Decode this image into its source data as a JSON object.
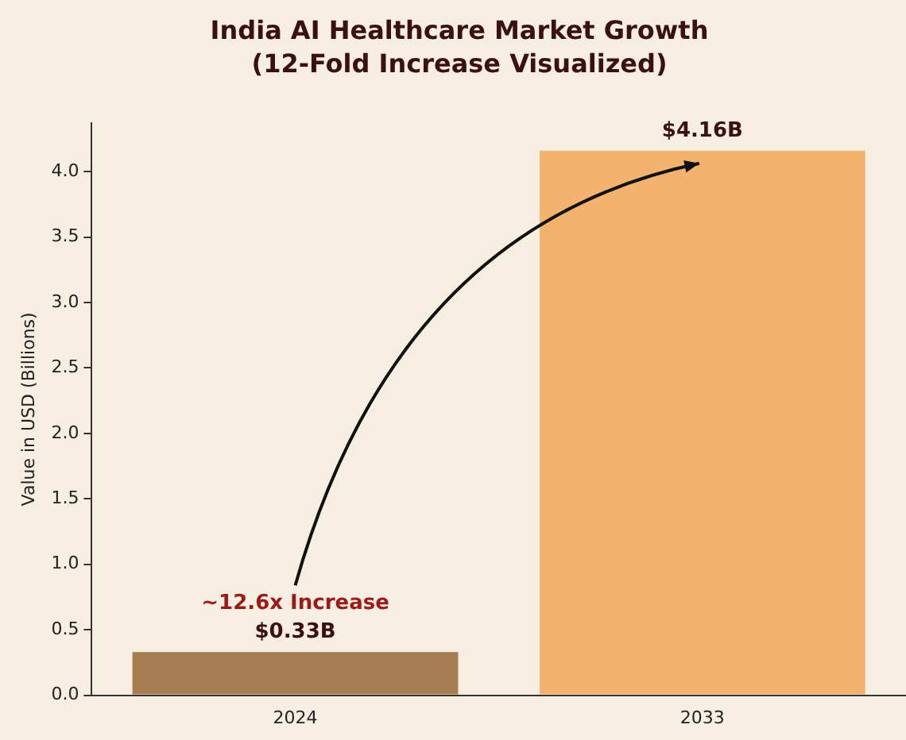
{
  "chart_data": {
    "type": "bar",
    "title": [
      "India AI Healthcare Market Growth",
      "(12-Fold Increase Visualized)"
    ],
    "ylabel": "Value in USD (Billions)",
    "categories": [
      "2024",
      "2033"
    ],
    "values": [
      0.33,
      4.16
    ],
    "colors": [
      "#a67b50",
      "#f2b36f"
    ],
    "value_labels": [
      "$0.33B",
      "$4.16B"
    ],
    "annotations": [
      "~12.6x Increase"
    ],
    "ylim": [
      0,
      4.37
    ],
    "yticks": [
      {
        "value": 0,
        "label": "0.0"
      },
      {
        "value": 0.5,
        "label": "0.5"
      },
      {
        "value": 1,
        "label": "1.0"
      },
      {
        "value": 1.5,
        "label": "1.5"
      },
      {
        "value": 2,
        "label": "2.0"
      },
      {
        "value": 2.5,
        "label": "2.5"
      },
      {
        "value": 3,
        "label": "3.0"
      },
      {
        "value": 3.5,
        "label": "3.5"
      },
      {
        "value": 4,
        "label": "4.0"
      }
    ],
    "grid": false,
    "legend": false
  }
}
